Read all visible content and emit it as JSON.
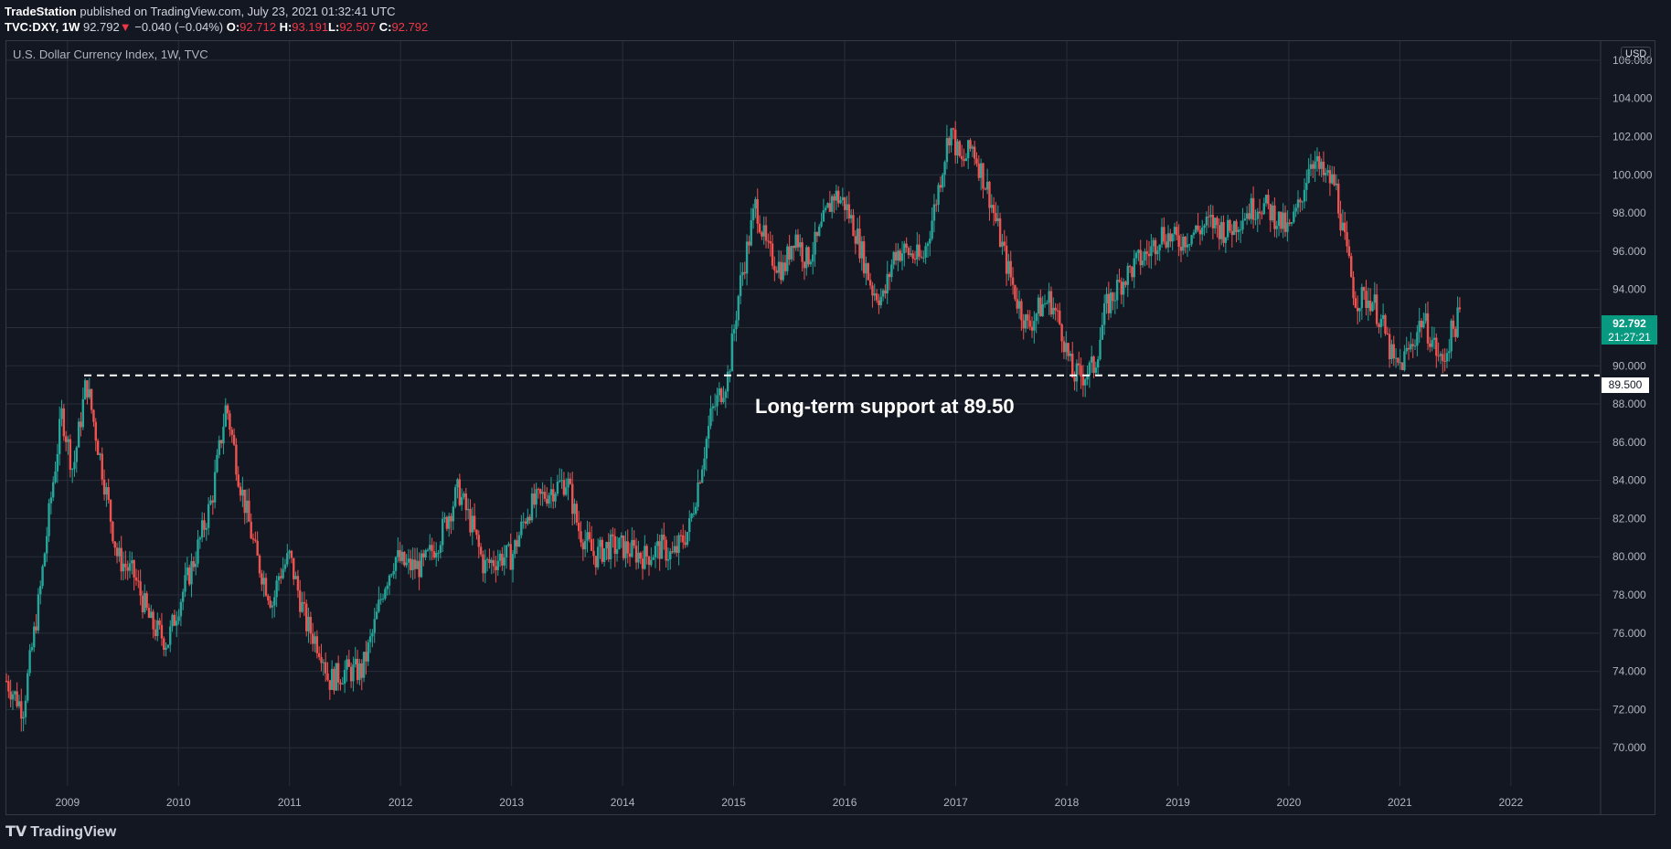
{
  "header": {
    "author": "TradeStation",
    "published": " published on TradingView.com, July 23, 2021 01:32:41 UTC",
    "symbol": "TVC:DXY, 1W",
    "last": "92.792",
    "change_arrow": "▼",
    "change": "−0.040 (−0.04%)",
    "open_label": "O:",
    "open": "92.712",
    "high_label": "H:",
    "high": "93.191",
    "low_label": "L:",
    "low": "92.507",
    "close_label": "C:",
    "close": "92.792"
  },
  "chart_title": "U.S. Dollar Currency Index, 1W, TVC",
  "currency": "USD",
  "annotation": "Long-term support at 89.50",
  "price_tag": {
    "price": "92.792",
    "countdown": "21:27:21"
  },
  "support_tag": "89.500",
  "footer": {
    "brand": "TradingView",
    "logo_icon": "tradingview-logo-icon"
  },
  "colors": {
    "up": "#26a69a",
    "down": "#ef5350",
    "background": "#131722",
    "grid": "#2a2e39"
  },
  "chart_data": {
    "type": "candlestick",
    "interval": "1W",
    "x_range": [
      2008.45,
      2022.8
    ],
    "y_range": [
      68.0,
      107.0
    ],
    "x_ticks": [
      "2009",
      "2010",
      "2011",
      "2012",
      "2013",
      "2014",
      "2015",
      "2016",
      "2017",
      "2018",
      "2019",
      "2020",
      "2021",
      "2022"
    ],
    "y_ticks": [
      "70.000",
      "72.000",
      "74.000",
      "76.000",
      "78.000",
      "80.000",
      "82.000",
      "84.000",
      "86.000",
      "88.000",
      "90.000",
      "92.000",
      "94.000",
      "96.000",
      "98.000",
      "100.000",
      "102.000",
      "104.000",
      "106.000"
    ],
    "support_level": 89.5,
    "support_start": 2009.15,
    "close_path": [
      [
        2008.45,
        73.5
      ],
      [
        2008.6,
        72.0
      ],
      [
        2008.75,
        78.0
      ],
      [
        2008.85,
        83.0
      ],
      [
        2008.95,
        87.5
      ],
      [
        2009.05,
        84.5
      ],
      [
        2009.17,
        89.2
      ],
      [
        2009.3,
        85.0
      ],
      [
        2009.45,
        80.0
      ],
      [
        2009.6,
        79.0
      ],
      [
        2009.75,
        76.5
      ],
      [
        2009.9,
        75.5
      ],
      [
        2010.0,
        77.5
      ],
      [
        2010.15,
        80.0
      ],
      [
        2010.3,
        83.0
      ],
      [
        2010.43,
        88.0
      ],
      [
        2010.55,
        84.0
      ],
      [
        2010.7,
        80.0
      ],
      [
        2010.85,
        77.5
      ],
      [
        2010.9,
        79.0
      ],
      [
        2011.0,
        80.0
      ],
      [
        2011.15,
        76.5
      ],
      [
        2011.3,
        75.0
      ],
      [
        2011.35,
        73.5
      ],
      [
        2011.5,
        74.0
      ],
      [
        2011.65,
        74.0
      ],
      [
        2011.75,
        76.0
      ],
      [
        2011.85,
        78.5
      ],
      [
        2011.95,
        80.0
      ],
      [
        2012.05,
        79.5
      ],
      [
        2012.2,
        79.5
      ],
      [
        2012.35,
        81.0
      ],
      [
        2012.52,
        83.5
      ],
      [
        2012.65,
        81.5
      ],
      [
        2012.75,
        79.5
      ],
      [
        2012.9,
        80.0
      ],
      [
        2013.0,
        80.0
      ],
      [
        2013.15,
        82.5
      ],
      [
        2013.35,
        83.5
      ],
      [
        2013.5,
        84.0
      ],
      [
        2013.6,
        81.5
      ],
      [
        2013.75,
        80.0
      ],
      [
        2013.85,
        80.5
      ],
      [
        2014.0,
        80.5
      ],
      [
        2014.2,
        80.0
      ],
      [
        2014.35,
        80.5
      ],
      [
        2014.45,
        80.0
      ],
      [
        2014.6,
        81.5
      ],
      [
        2014.7,
        84.5
      ],
      [
        2014.8,
        87.5
      ],
      [
        2014.95,
        89.5
      ],
      [
        2015.05,
        94.0
      ],
      [
        2015.2,
        98.5
      ],
      [
        2015.3,
        96.0
      ],
      [
        2015.45,
        95.0
      ],
      [
        2015.55,
        97.0
      ],
      [
        2015.65,
        95.5
      ],
      [
        2015.75,
        96.5
      ],
      [
        2015.9,
        99.0
      ],
      [
        2016.0,
        98.5
      ],
      [
        2016.1,
        97.0
      ],
      [
        2016.25,
        94.0
      ],
      [
        2016.35,
        93.5
      ],
      [
        2016.45,
        96.0
      ],
      [
        2016.55,
        96.0
      ],
      [
        2016.7,
        95.5
      ],
      [
        2016.8,
        98.0
      ],
      [
        2016.95,
        102.5
      ],
      [
        2017.05,
        100.5
      ],
      [
        2017.15,
        101.5
      ],
      [
        2017.3,
        99.0
      ],
      [
        2017.45,
        95.5
      ],
      [
        2017.55,
        93.5
      ],
      [
        2017.65,
        92.0
      ],
      [
        2017.75,
        93.0
      ],
      [
        2017.85,
        93.5
      ],
      [
        2017.95,
        92.0
      ],
      [
        2018.05,
        89.5
      ],
      [
        2018.15,
        89.5
      ],
      [
        2018.25,
        90.0
      ],
      [
        2018.35,
        93.0
      ],
      [
        2018.5,
        94.5
      ],
      [
        2018.65,
        95.5
      ],
      [
        2018.75,
        96.0
      ],
      [
        2018.85,
        97.0
      ],
      [
        2019.0,
        96.5
      ],
      [
        2019.15,
        97.0
      ],
      [
        2019.3,
        97.5
      ],
      [
        2019.45,
        97.0
      ],
      [
        2019.6,
        98.0
      ],
      [
        2019.75,
        98.5
      ],
      [
        2019.85,
        98.0
      ],
      [
        2020.0,
        97.0
      ],
      [
        2020.1,
        98.5
      ],
      [
        2020.2,
        101.0
      ],
      [
        2020.3,
        100.0
      ],
      [
        2020.42,
        99.5
      ],
      [
        2020.5,
        96.5
      ],
      [
        2020.6,
        93.5
      ],
      [
        2020.75,
        93.5
      ],
      [
        2020.85,
        92.0
      ],
      [
        2020.95,
        90.0
      ],
      [
        2021.0,
        90.0
      ],
      [
        2021.1,
        91.0
      ],
      [
        2021.2,
        92.5
      ],
      [
        2021.28,
        91.5
      ],
      [
        2021.38,
        90.0
      ],
      [
        2021.45,
        91.5
      ],
      [
        2021.55,
        92.8
      ]
    ]
  }
}
